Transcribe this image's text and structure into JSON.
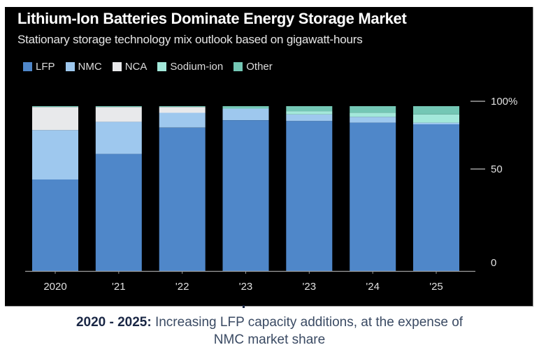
{
  "chart_data": {
    "type": "bar",
    "stacked": true,
    "title": "Lithium-Ion Batteries Dominate Energy Storage Market",
    "subtitle": "Stationary storage technology mix outlook based on gigawatt-hours",
    "xlabel": "",
    "ylabel": "",
    "ylim": [
      0,
      100
    ],
    "yticks": [
      {
        "value": 100,
        "label": "100%"
      },
      {
        "value": 50,
        "label": "50"
      },
      {
        "value": 0,
        "label": "0"
      }
    ],
    "y_axis_side": "right",
    "grid": false,
    "legend_position": "top-left",
    "categories": [
      "2020",
      "'21",
      "'22",
      "'23",
      "'23",
      "'24",
      "'25"
    ],
    "series": [
      {
        "name": "LFP",
        "color": "#4f87c9",
        "values": [
          55.5,
          71,
          87,
          91.5,
          91,
          90,
          89
        ]
      },
      {
        "name": "NMC",
        "color": "#9ec8ee",
        "values": [
          30,
          19.5,
          9,
          7,
          4,
          3.5,
          1
        ]
      },
      {
        "name": "NCA",
        "color": "#e8e9eb",
        "values": [
          14,
          9,
          3.5,
          0,
          0,
          0,
          0
        ]
      },
      {
        "name": "Sodium-ion",
        "color": "#a3e8da",
        "values": [
          0,
          0,
          0,
          0,
          2,
          2.5,
          5
        ]
      },
      {
        "name": "Other",
        "color": "#74c7b5",
        "values": [
          0.5,
          0.5,
          0.5,
          1.5,
          3,
          4,
          5
        ]
      }
    ]
  },
  "caption": {
    "bold": "2020 - 2025:",
    "text": " Increasing LFP capacity additions, at the expense of",
    "line2": "NMC market share"
  }
}
